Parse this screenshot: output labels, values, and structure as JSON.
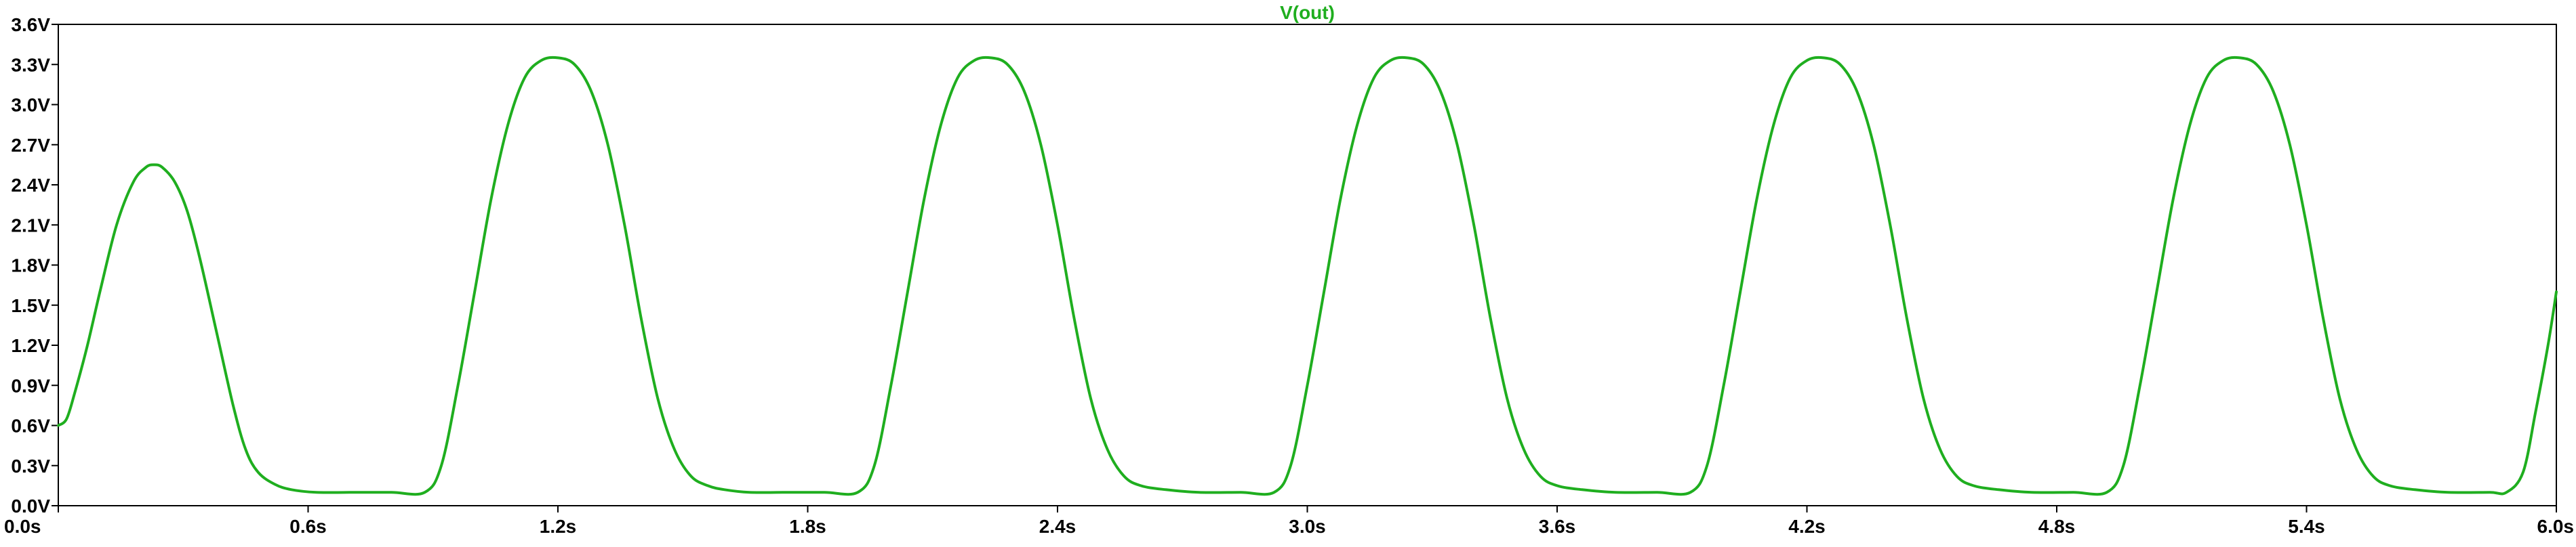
{
  "chart_data": {
    "type": "line",
    "title": "V(out)",
    "xlabel": "",
    "ylabel": "",
    "xlim": [
      0.0,
      6.0
    ],
    "ylim": [
      0.0,
      3.6
    ],
    "x_ticks": [
      "0.0s",
      "0.6s",
      "1.2s",
      "1.8s",
      "2.4s",
      "3.0s",
      "3.6s",
      "4.2s",
      "4.8s",
      "5.4s",
      "6.0s"
    ],
    "x_tick_values": [
      0.0,
      0.6,
      1.2,
      1.8,
      2.4,
      3.0,
      3.6,
      4.2,
      4.8,
      5.4,
      6.0
    ],
    "y_ticks": [
      "0.0V",
      "0.3V",
      "0.6V",
      "0.9V",
      "1.2V",
      "1.5V",
      "1.8V",
      "2.1V",
      "2.4V",
      "2.7V",
      "3.0V",
      "3.3V",
      "3.6V"
    ],
    "y_tick_values": [
      0.0,
      0.3,
      0.6,
      0.9,
      1.2,
      1.5,
      1.8,
      2.1,
      2.4,
      2.7,
      3.0,
      3.3,
      3.6
    ],
    "grid": false,
    "series_color": "#1fae1f",
    "series": [
      {
        "name": "V(out)",
        "x": [
          0.0,
          0.02,
          0.04,
          0.07,
          0.1,
          0.14,
          0.18,
          0.21,
          0.23,
          0.25,
          0.28,
          0.31,
          0.34,
          0.38,
          0.42,
          0.45,
          0.48,
          0.52,
          0.56,
          0.62,
          0.7,
          0.8,
          0.88,
          0.92,
          0.96,
          1.0,
          1.04,
          1.08,
          1.12,
          1.16,
          1.2,
          1.24,
          1.28,
          1.32,
          1.36,
          1.4,
          1.44,
          1.48,
          1.52,
          1.56,
          1.6,
          1.66,
          1.74,
          1.84,
          1.92,
          1.96,
          2.0,
          2.04,
          2.08,
          2.12,
          2.16,
          2.2,
          2.24,
          2.28,
          2.32,
          2.36,
          2.4,
          2.44,
          2.48,
          2.52,
          2.56,
          2.6,
          2.66,
          2.74,
          2.84,
          2.92,
          2.96,
          3.0,
          3.04,
          3.08,
          3.12,
          3.16,
          3.2,
          3.24,
          3.28,
          3.32,
          3.36,
          3.4,
          3.44,
          3.48,
          3.52,
          3.56,
          3.6,
          3.66,
          3.74,
          3.84,
          3.92,
          3.96,
          4.0,
          4.04,
          4.08,
          4.12,
          4.16,
          4.2,
          4.24,
          4.28,
          4.32,
          4.36,
          4.4,
          4.44,
          4.48,
          4.52,
          4.56,
          4.6,
          4.66,
          4.74,
          4.84,
          4.92,
          4.96,
          5.0,
          5.04,
          5.08,
          5.12,
          5.16,
          5.2,
          5.24,
          5.28,
          5.32,
          5.36,
          5.4,
          5.44,
          5.48,
          5.52,
          5.56,
          5.6,
          5.66,
          5.74,
          5.84,
          5.88,
          5.92,
          5.95,
          5.98,
          6.0
        ],
        "y": [
          0.6,
          0.65,
          0.85,
          1.2,
          1.6,
          2.1,
          2.42,
          2.53,
          2.55,
          2.53,
          2.42,
          2.2,
          1.85,
          1.3,
          0.75,
          0.42,
          0.25,
          0.16,
          0.12,
          0.1,
          0.1,
          0.1,
          0.1,
          0.3,
          0.9,
          1.6,
          2.3,
          2.85,
          3.2,
          3.33,
          3.35,
          3.3,
          3.1,
          2.7,
          2.1,
          1.4,
          0.8,
          0.42,
          0.22,
          0.15,
          0.12,
          0.1,
          0.1,
          0.1,
          0.1,
          0.3,
          0.9,
          1.6,
          2.3,
          2.85,
          3.2,
          3.33,
          3.35,
          3.3,
          3.1,
          2.7,
          2.1,
          1.4,
          0.8,
          0.42,
          0.22,
          0.15,
          0.12,
          0.1,
          0.1,
          0.1,
          0.3,
          0.9,
          1.6,
          2.3,
          2.85,
          3.2,
          3.33,
          3.35,
          3.3,
          3.1,
          2.7,
          2.1,
          1.4,
          0.8,
          0.42,
          0.22,
          0.15,
          0.12,
          0.1,
          0.1,
          0.1,
          0.3,
          0.9,
          1.6,
          2.3,
          2.85,
          3.2,
          3.33,
          3.35,
          3.3,
          3.1,
          2.7,
          2.1,
          1.4,
          0.8,
          0.42,
          0.22,
          0.15,
          0.12,
          0.1,
          0.1,
          0.1,
          0.3,
          0.9,
          1.6,
          2.3,
          2.85,
          3.2,
          3.33,
          3.35,
          3.3,
          3.1,
          2.7,
          2.1,
          1.4,
          0.8,
          0.42,
          0.22,
          0.15,
          0.12,
          0.1,
          0.1,
          0.1,
          0.25,
          0.7,
          1.2,
          1.6
        ]
      }
    ]
  }
}
